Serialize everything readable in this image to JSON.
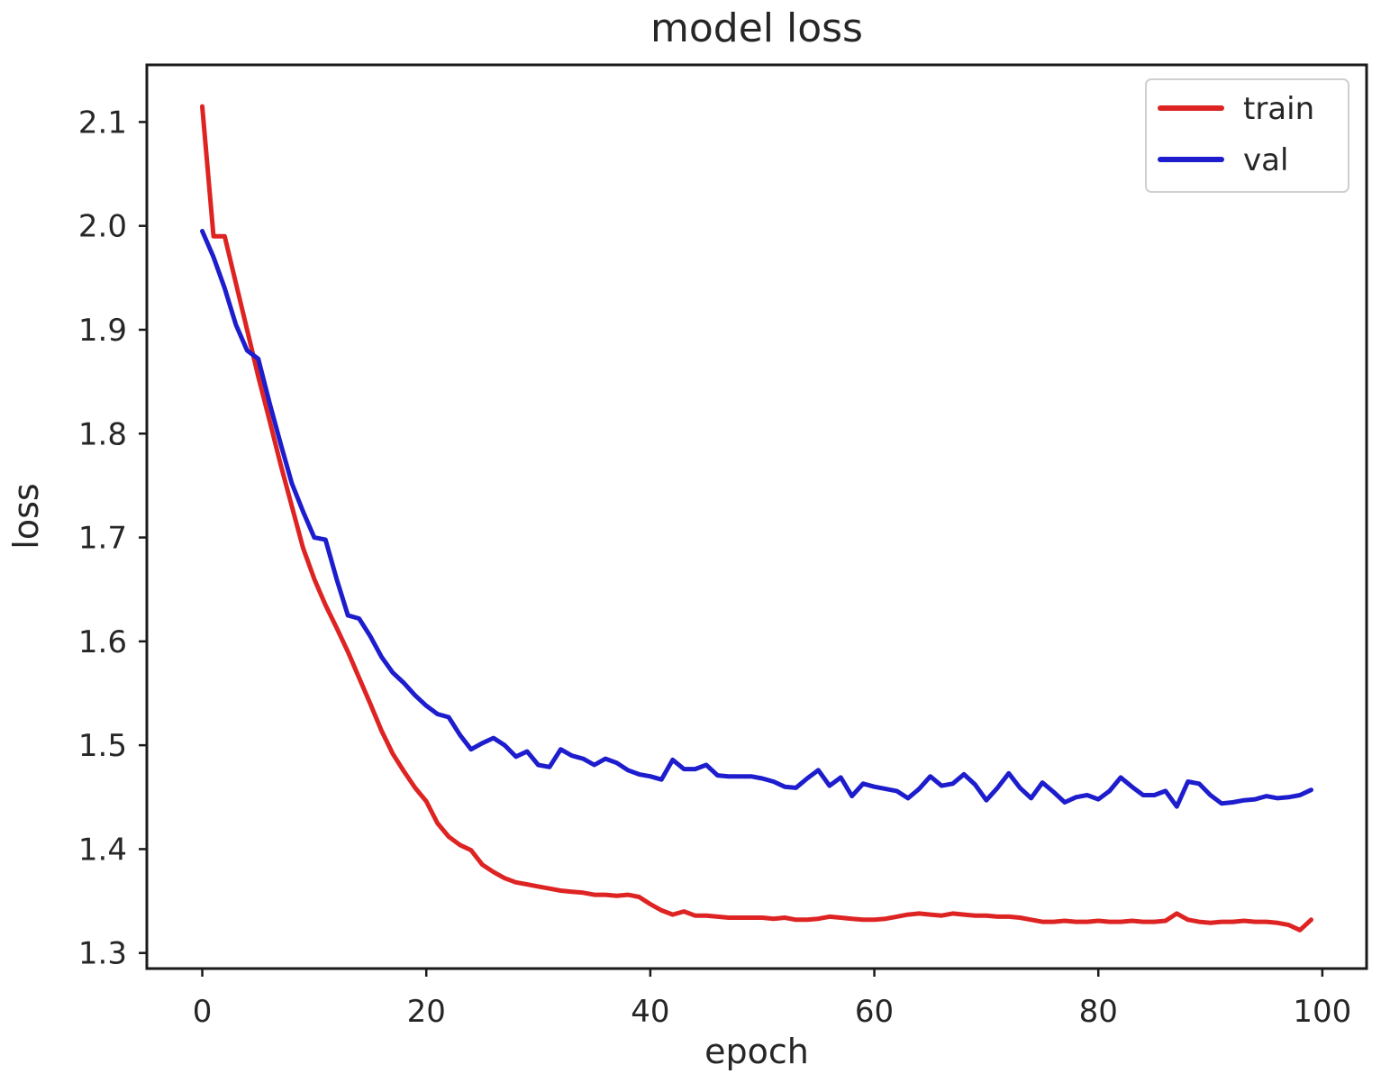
{
  "figure": {
    "background": "#ffffff",
    "frame_color": "#1a1a1a",
    "text_color": "#262626"
  },
  "chart_data": {
    "type": "line",
    "title": "model loss",
    "xlabel": "epoch",
    "ylabel": "loss",
    "grid": false,
    "legend": {
      "position": "upper right",
      "entries": [
        "train",
        "val"
      ]
    },
    "x_ticks": [
      0,
      20,
      40,
      60,
      80,
      100
    ],
    "y_ticks": [
      1.3,
      1.4,
      1.5,
      1.6,
      1.7,
      1.8,
      1.9,
      2.0,
      2.1
    ],
    "xlim": [
      -4.95,
      103.95
    ],
    "ylim": [
      1.285,
      2.155
    ],
    "x": [
      0,
      1,
      2,
      3,
      4,
      5,
      6,
      7,
      8,
      9,
      10,
      11,
      12,
      13,
      14,
      15,
      16,
      17,
      18,
      19,
      20,
      21,
      22,
      23,
      24,
      25,
      26,
      27,
      28,
      29,
      30,
      31,
      32,
      33,
      34,
      35,
      36,
      37,
      38,
      39,
      40,
      41,
      42,
      43,
      44,
      45,
      46,
      47,
      48,
      49,
      50,
      51,
      52,
      53,
      54,
      55,
      56,
      57,
      58,
      59,
      60,
      61,
      62,
      63,
      64,
      65,
      66,
      67,
      68,
      69,
      70,
      71,
      72,
      73,
      74,
      75,
      76,
      77,
      78,
      79,
      80,
      81,
      82,
      83,
      84,
      85,
      86,
      87,
      88,
      89,
      90,
      91,
      92,
      93,
      94,
      95,
      96,
      97,
      98,
      99
    ],
    "series": [
      {
        "name": "train",
        "color": "#de2323",
        "values": [
          2.115,
          1.99,
          1.99,
          1.945,
          1.9,
          1.855,
          1.813,
          1.77,
          1.73,
          1.69,
          1.66,
          1.635,
          1.613,
          1.59,
          1.565,
          1.54,
          1.514,
          1.492,
          1.475,
          1.459,
          1.446,
          1.425,
          1.412,
          1.404,
          1.399,
          1.385,
          1.378,
          1.372,
          1.368,
          1.366,
          1.364,
          1.362,
          1.36,
          1.359,
          1.358,
          1.356,
          1.356,
          1.355,
          1.356,
          1.354,
          1.347,
          1.341,
          1.337,
          1.34,
          1.336,
          1.336,
          1.335,
          1.334,
          1.334,
          1.334,
          1.334,
          1.333,
          1.334,
          1.332,
          1.332,
          1.333,
          1.335,
          1.334,
          1.333,
          1.332,
          1.332,
          1.333,
          1.335,
          1.337,
          1.338,
          1.337,
          1.336,
          1.338,
          1.337,
          1.336,
          1.336,
          1.335,
          1.335,
          1.334,
          1.332,
          1.33,
          1.33,
          1.331,
          1.33,
          1.33,
          1.331,
          1.33,
          1.33,
          1.331,
          1.33,
          1.33,
          1.331,
          1.338,
          1.332,
          1.33,
          1.329,
          1.33,
          1.33,
          1.331,
          1.33,
          1.33,
          1.329,
          1.327,
          1.322,
          1.332
        ]
      },
      {
        "name": "val",
        "color": "#1d1dcd",
        "values": [
          1.995,
          1.97,
          1.94,
          1.905,
          1.88,
          1.872,
          1.83,
          1.79,
          1.752,
          1.725,
          1.7,
          1.698,
          1.66,
          1.625,
          1.622,
          1.605,
          1.585,
          1.57,
          1.56,
          1.548,
          1.538,
          1.53,
          1.527,
          1.51,
          1.496,
          1.502,
          1.507,
          1.5,
          1.489,
          1.494,
          1.481,
          1.479,
          1.496,
          1.49,
          1.487,
          1.481,
          1.487,
          1.483,
          1.476,
          1.472,
          1.47,
          1.467,
          1.486,
          1.477,
          1.477,
          1.481,
          1.471,
          1.47,
          1.47,
          1.47,
          1.468,
          1.465,
          1.46,
          1.459,
          1.468,
          1.476,
          1.461,
          1.469,
          1.451,
          1.463,
          1.46,
          1.458,
          1.456,
          1.449,
          1.458,
          1.47,
          1.461,
          1.463,
          1.472,
          1.462,
          1.447,
          1.459,
          1.473,
          1.459,
          1.449,
          1.464,
          1.455,
          1.445,
          1.45,
          1.452,
          1.448,
          1.456,
          1.469,
          1.46,
          1.452,
          1.452,
          1.456,
          1.441,
          1.465,
          1.463,
          1.452,
          1.444,
          1.445,
          1.447,
          1.448,
          1.451,
          1.449,
          1.45,
          1.452,
          1.457
        ]
      }
    ]
  }
}
